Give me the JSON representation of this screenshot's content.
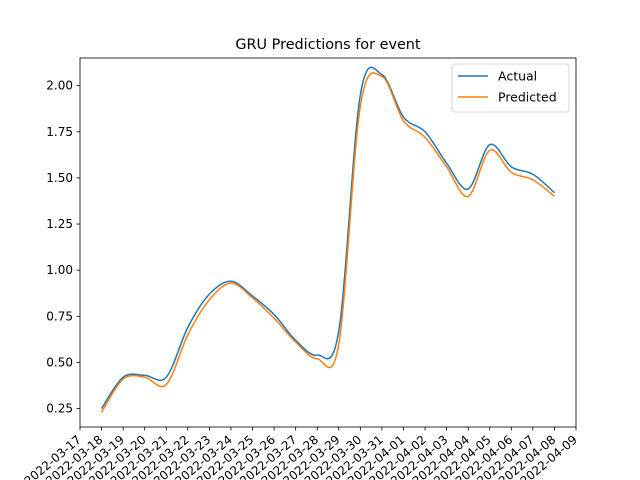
{
  "chart_data": {
    "type": "line",
    "title": "GRU Predictions for event",
    "xlabel": "",
    "ylabel": "",
    "x_tick_labels": [
      "2022-03-17",
      "2022-03-18",
      "2022-03-19",
      "2022-03-20",
      "2022-03-21",
      "2022-03-22",
      "2022-03-23",
      "2022-03-24",
      "2022-03-25",
      "2022-03-26",
      "2022-03-27",
      "2022-03-28",
      "2022-03-29",
      "2022-03-30",
      "2022-03-31",
      "2022-04-01",
      "2022-04-02",
      "2022-04-03",
      "2022-04-04",
      "2022-04-05",
      "2022-04-06",
      "2022-04-07",
      "2022-04-08",
      "2022-04-09"
    ],
    "xlim": [
      "2022-03-17",
      "2022-04-09"
    ],
    "y_ticks": [
      0.25,
      0.5,
      0.75,
      1.0,
      1.25,
      1.5,
      1.75,
      2.0
    ],
    "y_tick_labels": [
      "0.25",
      "0.50",
      "0.75",
      "1.00",
      "1.25",
      "1.50",
      "1.75",
      "2.00"
    ],
    "ylim": [
      0.15,
      2.15
    ],
    "grid": false,
    "legend_position": "top-right",
    "x": [
      "2022-03-18",
      "2022-03-19",
      "2022-03-20",
      "2022-03-21",
      "2022-03-22",
      "2022-03-23",
      "2022-03-24",
      "2022-03-25",
      "2022-03-26",
      "2022-03-27",
      "2022-03-28",
      "2022-03-29",
      "2022-03-30",
      "2022-03-31",
      "2022-04-01",
      "2022-04-02",
      "2022-04-03",
      "2022-04-04",
      "2022-04-05",
      "2022-04-06",
      "2022-04-07",
      "2022-04-08"
    ],
    "series": [
      {
        "name": "Actual",
        "color": "#1f77b4",
        "values": [
          0.25,
          0.42,
          0.43,
          0.42,
          0.69,
          0.87,
          0.94,
          0.86,
          0.76,
          0.62,
          0.54,
          0.67,
          1.95,
          2.06,
          1.83,
          1.75,
          1.58,
          1.44,
          1.68,
          1.56,
          1.52,
          1.42
        ]
      },
      {
        "name": "Predicted",
        "color": "#ff7f0e",
        "values": [
          0.23,
          0.41,
          0.42,
          0.38,
          0.65,
          0.84,
          0.93,
          0.85,
          0.74,
          0.61,
          0.52,
          0.6,
          1.89,
          2.05,
          1.81,
          1.72,
          1.56,
          1.4,
          1.65,
          1.53,
          1.49,
          1.4
        ]
      }
    ]
  }
}
